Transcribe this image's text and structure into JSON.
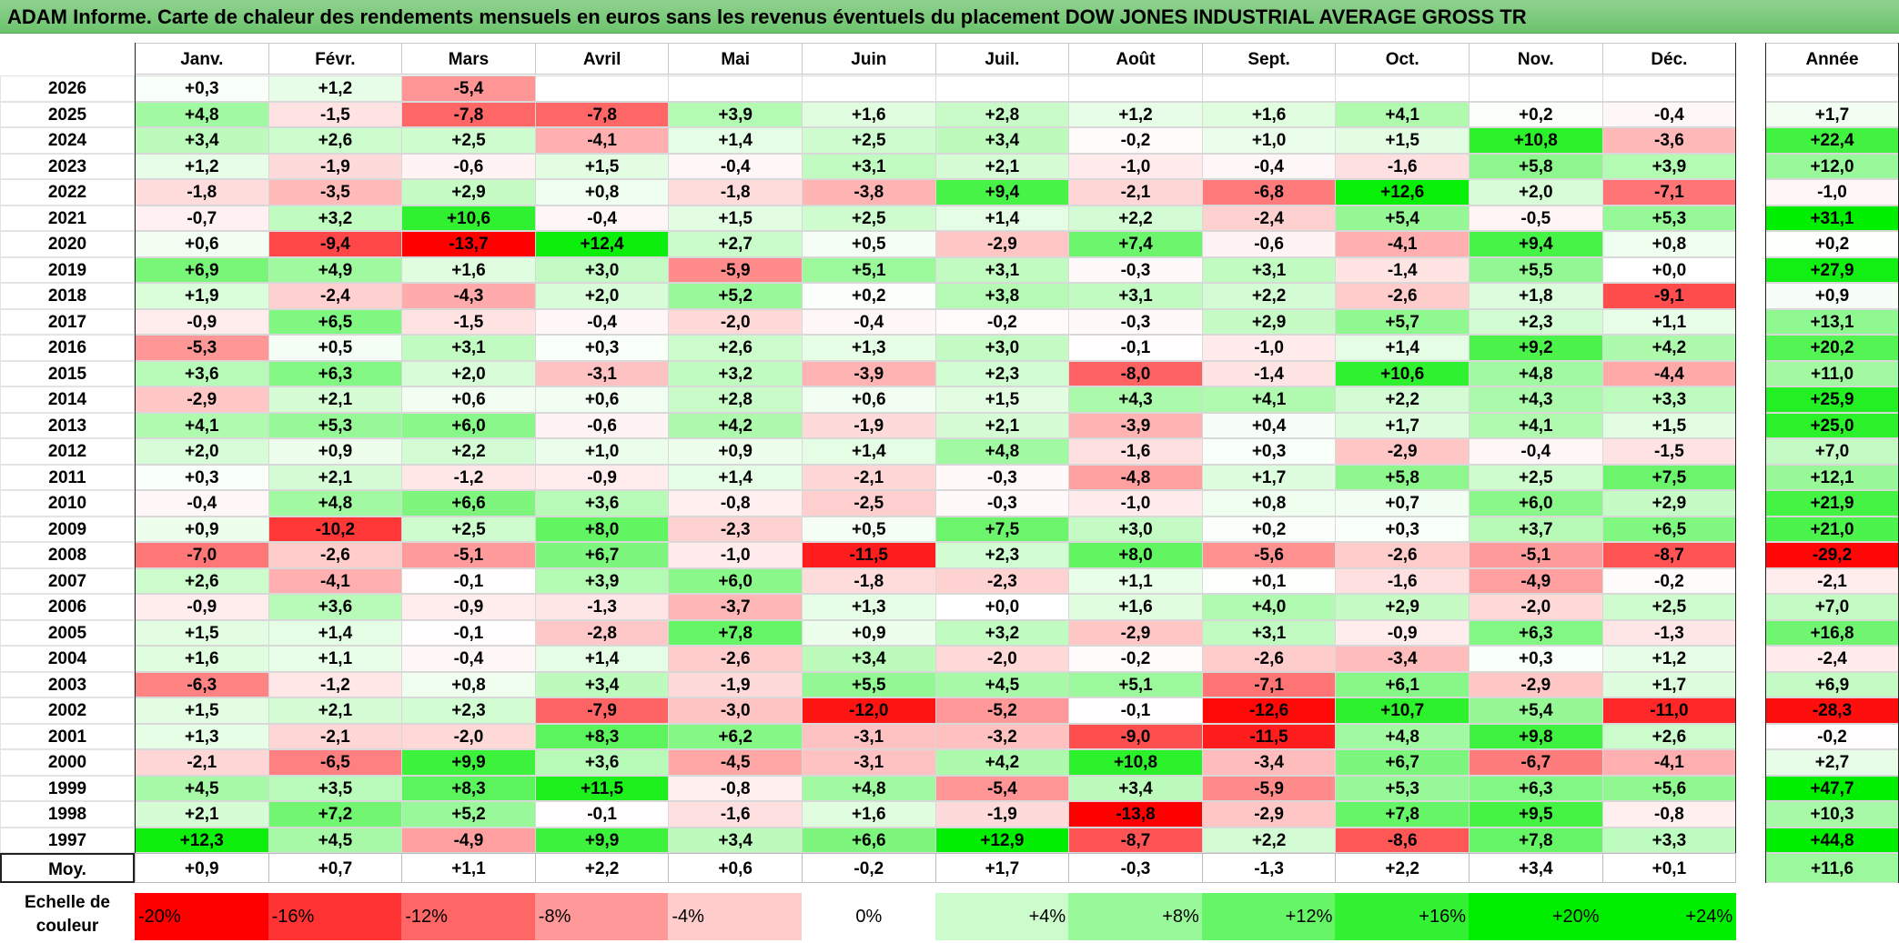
{
  "title": "ADAM Informe. Carte de chaleur des rendements mensuels en euros sans les revenus éventuels du placement DOW JONES INDUSTRIAL AVERAGE GROSS TR",
  "chart_data": {
    "type": "heatmap",
    "columns": [
      "Janv.",
      "Févr.",
      "Mars",
      "Avril",
      "Mai",
      "Juin",
      "Juil.",
      "Août",
      "Sept.",
      "Oct.",
      "Nov.",
      "Déc."
    ],
    "year_column_label": "Année",
    "rows": [
      {
        "year": "2026",
        "months": [
          "+0,3",
          "+1,2",
          "-5,4",
          "",
          "",
          "",
          "",
          "",
          "",
          "",
          "",
          ""
        ],
        "annual": ""
      },
      {
        "year": "2025",
        "months": [
          "+4,8",
          "-1,5",
          "-7,8",
          "-7,8",
          "+3,9",
          "+1,6",
          "+2,8",
          "+1,2",
          "+1,6",
          "+4,1",
          "+0,2",
          "-0,4"
        ],
        "annual": "+1,7"
      },
      {
        "year": "2024",
        "months": [
          "+3,4",
          "+2,6",
          "+2,5",
          "-4,1",
          "+1,4",
          "+2,5",
          "+3,4",
          "-0,2",
          "+1,0",
          "+1,5",
          "+10,8",
          "-3,6"
        ],
        "annual": "+22,4"
      },
      {
        "year": "2023",
        "months": [
          "+1,2",
          "-1,9",
          "-0,6",
          "+1,5",
          "-0,4",
          "+3,1",
          "+2,1",
          "-1,0",
          "-0,4",
          "-1,6",
          "+5,8",
          "+3,9"
        ],
        "annual": "+12,0"
      },
      {
        "year": "2022",
        "months": [
          "-1,8",
          "-3,5",
          "+2,9",
          "+0,8",
          "-1,8",
          "-3,8",
          "+9,4",
          "-2,1",
          "-6,8",
          "+12,6",
          "+2,0",
          "-7,1"
        ],
        "annual": "-1,0"
      },
      {
        "year": "2021",
        "months": [
          "-0,7",
          "+3,2",
          "+10,6",
          "-0,4",
          "+1,5",
          "+2,5",
          "+1,4",
          "+2,2",
          "-2,4",
          "+5,4",
          "-0,5",
          "+5,3"
        ],
        "annual": "+31,1"
      },
      {
        "year": "2020",
        "months": [
          "+0,6",
          "-9,4",
          "-13,7",
          "+12,4",
          "+2,7",
          "+0,5",
          "-2,9",
          "+7,4",
          "-0,6",
          "-4,1",
          "+9,4",
          "+0,8"
        ],
        "annual": "+0,2"
      },
      {
        "year": "2019",
        "months": [
          "+6,9",
          "+4,9",
          "+1,6",
          "+3,0",
          "-5,9",
          "+5,1",
          "+3,1",
          "-0,3",
          "+3,1",
          "-1,4",
          "+5,5",
          "+0,0"
        ],
        "annual": "+27,9"
      },
      {
        "year": "2018",
        "months": [
          "+1,9",
          "-2,4",
          "-4,3",
          "+2,0",
          "+5,2",
          "+0,2",
          "+3,8",
          "+3,1",
          "+2,2",
          "-2,6",
          "+1,8",
          "-9,1"
        ],
        "annual": "+0,9"
      },
      {
        "year": "2017",
        "months": [
          "-0,9",
          "+6,5",
          "-1,5",
          "-0,4",
          "-2,0",
          "-0,4",
          "-0,2",
          "-0,3",
          "+2,9",
          "+5,7",
          "+2,3",
          "+1,1"
        ],
        "annual": "+13,1"
      },
      {
        "year": "2016",
        "months": [
          "-5,3",
          "+0,5",
          "+3,1",
          "+0,3",
          "+2,6",
          "+1,3",
          "+3,0",
          "-0,1",
          "-1,0",
          "+1,4",
          "+9,2",
          "+4,2"
        ],
        "annual": "+20,2"
      },
      {
        "year": "2015",
        "months": [
          "+3,6",
          "+6,3",
          "+2,0",
          "-3,1",
          "+3,2",
          "-3,9",
          "+2,3",
          "-8,0",
          "-1,4",
          "+10,6",
          "+4,8",
          "-4,4"
        ],
        "annual": "+11,0"
      },
      {
        "year": "2014",
        "months": [
          "-2,9",
          "+2,1",
          "+0,6",
          "+0,6",
          "+2,8",
          "+0,6",
          "+1,5",
          "+4,3",
          "+4,1",
          "+2,2",
          "+4,3",
          "+3,3"
        ],
        "annual": "+25,9"
      },
      {
        "year": "2013",
        "months": [
          "+4,1",
          "+5,3",
          "+6,0",
          "-0,6",
          "+4,2",
          "-1,9",
          "+2,1",
          "-3,9",
          "+0,4",
          "+1,7",
          "+4,1",
          "+1,5"
        ],
        "annual": "+25,0"
      },
      {
        "year": "2012",
        "months": [
          "+2,0",
          "+0,9",
          "+2,2",
          "+1,0",
          "+0,9",
          "+1,4",
          "+4,8",
          "-1,6",
          "+0,3",
          "-2,9",
          "-0,4",
          "-1,5"
        ],
        "annual": "+7,0"
      },
      {
        "year": "2011",
        "months": [
          "+0,3",
          "+2,1",
          "-1,2",
          "-0,9",
          "+1,4",
          "-2,1",
          "-0,3",
          "-4,8",
          "+1,7",
          "+5,8",
          "+2,5",
          "+7,5"
        ],
        "annual": "+12,1"
      },
      {
        "year": "2010",
        "months": [
          "-0,4",
          "+4,8",
          "+6,6",
          "+3,6",
          "-0,8",
          "-2,5",
          "-0,3",
          "-1,0",
          "+0,8",
          "+0,7",
          "+6,0",
          "+2,9"
        ],
        "annual": "+21,9"
      },
      {
        "year": "2009",
        "months": [
          "+0,9",
          "-10,2",
          "+2,5",
          "+8,0",
          "-2,3",
          "+0,5",
          "+7,5",
          "+3,0",
          "+0,2",
          "+0,3",
          "+3,7",
          "+6,5"
        ],
        "annual": "+21,0"
      },
      {
        "year": "2008",
        "months": [
          "-7,0",
          "-2,6",
          "-5,1",
          "+6,7",
          "-1,0",
          "-11,5",
          "+2,3",
          "+8,0",
          "-5,6",
          "-2,6",
          "-5,1",
          "-8,7"
        ],
        "annual": "-29,2"
      },
      {
        "year": "2007",
        "months": [
          "+2,6",
          "-4,1",
          "-0,1",
          "+3,9",
          "+6,0",
          "-1,8",
          "-2,3",
          "+1,1",
          "+0,1",
          "-1,6",
          "-4,9",
          "-0,2"
        ],
        "annual": "-2,1"
      },
      {
        "year": "2006",
        "months": [
          "-0,9",
          "+3,6",
          "-0,9",
          "-1,3",
          "-3,7",
          "+1,3",
          "+0,0",
          "+1,6",
          "+4,0",
          "+2,9",
          "-2,0",
          "+2,5"
        ],
        "annual": "+7,0"
      },
      {
        "year": "2005",
        "months": [
          "+1,5",
          "+1,4",
          "-0,1",
          "-2,8",
          "+7,8",
          "+0,9",
          "+3,2",
          "-2,9",
          "+3,1",
          "-0,9",
          "+6,3",
          "-1,3"
        ],
        "annual": "+16,8"
      },
      {
        "year": "2004",
        "months": [
          "+1,6",
          "+1,1",
          "-0,4",
          "+1,4",
          "-2,6",
          "+3,4",
          "-2,0",
          "-0,2",
          "-2,6",
          "-3,4",
          "+0,3",
          "+1,2"
        ],
        "annual": "-2,4"
      },
      {
        "year": "2003",
        "months": [
          "-6,3",
          "-1,2",
          "+0,8",
          "+3,4",
          "-1,9",
          "+5,5",
          "+4,5",
          "+5,1",
          "-7,1",
          "+6,1",
          "-2,9",
          "+1,7"
        ],
        "annual": "+6,9"
      },
      {
        "year": "2002",
        "months": [
          "+1,5",
          "+2,1",
          "+2,3",
          "-7,9",
          "-3,0",
          "-12,0",
          "-5,2",
          "-0,1",
          "-12,6",
          "+10,7",
          "+5,4",
          "-11,0"
        ],
        "annual": "-28,3"
      },
      {
        "year": "2001",
        "months": [
          "+1,3",
          "-2,1",
          "-2,0",
          "+8,3",
          "+6,2",
          "-3,1",
          "-3,2",
          "-9,0",
          "-11,5",
          "+4,8",
          "+9,8",
          "+2,6"
        ],
        "annual": "-0,2"
      },
      {
        "year": "2000",
        "months": [
          "-2,1",
          "-6,5",
          "+9,9",
          "+3,6",
          "-4,5",
          "-3,1",
          "+4,2",
          "+10,8",
          "-3,4",
          "+6,7",
          "-6,7",
          "-4,1"
        ],
        "annual": "+2,7"
      },
      {
        "year": "1999",
        "months": [
          "+4,5",
          "+3,5",
          "+8,3",
          "+11,5",
          "-0,8",
          "+4,8",
          "-5,4",
          "+3,4",
          "-5,9",
          "+5,3",
          "+6,3",
          "+5,6"
        ],
        "annual": "+47,7"
      },
      {
        "year": "1998",
        "months": [
          "+2,1",
          "+7,2",
          "+5,2",
          "-0,1",
          "-1,6",
          "+1,6",
          "-1,9",
          "-13,8",
          "-2,9",
          "+7,8",
          "+9,5",
          "-0,8"
        ],
        "annual": "+10,3"
      },
      {
        "year": "1997",
        "months": [
          "+12,3",
          "+4,5",
          "-4,9",
          "+9,9",
          "+3,4",
          "+6,6",
          "+12,9",
          "-8,7",
          "+2,2",
          "-8,6",
          "+7,8",
          "+3,3"
        ],
        "annual": "+44,8"
      }
    ],
    "average": {
      "label": "Moy.",
      "months": [
        "+0,9",
        "+0,7",
        "+1,1",
        "+2,2",
        "+0,6",
        "-0,2",
        "+1,7",
        "-0,3",
        "-1,3",
        "+2,2",
        "+3,4",
        "+0,1"
      ],
      "annual": "+11,6"
    },
    "color_scale": {
      "label": "Echelle de couleur",
      "stops": [
        "-20%",
        "-16%",
        "-12%",
        "-8%",
        "-4%",
        "0%",
        "+4%",
        "+8%",
        "+12%",
        "+16%",
        "+20%",
        "+24%"
      ],
      "stop_values": [
        -20,
        -16,
        -12,
        -8,
        -4,
        0,
        4,
        8,
        12,
        16,
        20,
        24
      ],
      "negative_color": "#ff0000",
      "neutral_color": "#ffffff",
      "positive_color": "#00ee00"
    }
  }
}
